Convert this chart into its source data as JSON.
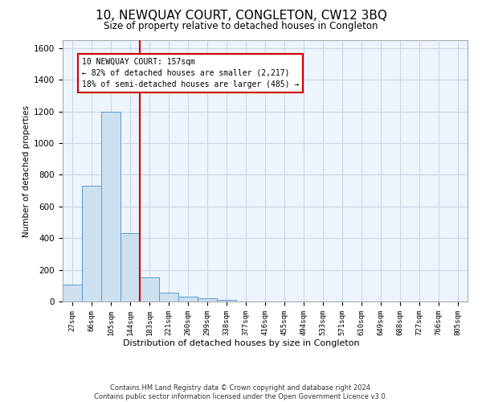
{
  "title": "10, NEWQUAY COURT, CONGLETON, CW12 3BQ",
  "subtitle": "Size of property relative to detached houses in Congleton",
  "xlabel": "Distribution of detached houses by size in Congleton",
  "ylabel": "Number of detached properties",
  "bar_labels": [
    "27sqm",
    "66sqm",
    "105sqm",
    "144sqm",
    "183sqm",
    "221sqm",
    "260sqm",
    "299sqm",
    "338sqm",
    "377sqm",
    "416sqm",
    "455sqm",
    "494sqm",
    "533sqm",
    "571sqm",
    "610sqm",
    "649sqm",
    "688sqm",
    "727sqm",
    "766sqm",
    "805sqm"
  ],
  "bar_values": [
    105,
    730,
    1200,
    430,
    150,
    55,
    28,
    18,
    10,
    0,
    0,
    0,
    0,
    0,
    0,
    0,
    0,
    0,
    0,
    0,
    0
  ],
  "bar_color": "#cce0f0",
  "bar_edge_color": "#5b9bd5",
  "grid_color": "#c8d8e8",
  "background_color": "#eef4fb",
  "vline_x_index": 3.5,
  "vline_color": "#cc0000",
  "annotation_text": "10 NEWQUAY COURT: 157sqm\n← 82% of detached houses are smaller (2,217)\n18% of semi-detached houses are larger (485) →",
  "annotation_box_color": "#ffffff",
  "annotation_box_edge": "#cc0000",
  "ylim": [
    0,
    1650
  ],
  "yticks": [
    0,
    200,
    400,
    600,
    800,
    1000,
    1200,
    1400,
    1600
  ],
  "footer": "Contains HM Land Registry data © Crown copyright and database right 2024.\nContains public sector information licensed under the Open Government Licence v3.0."
}
